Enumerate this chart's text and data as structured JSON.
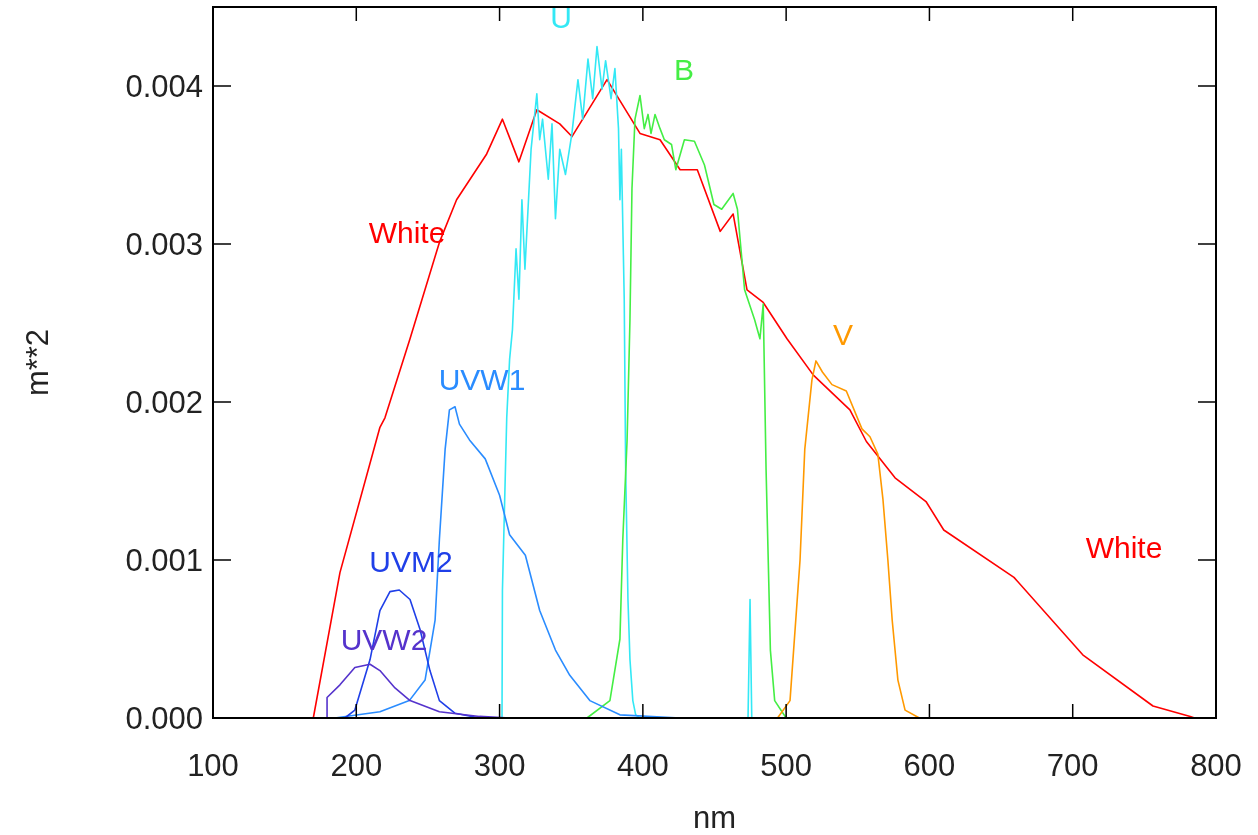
{
  "chart_data": {
    "type": "line",
    "xlabel": "nm",
    "ylabel": "m**2",
    "xlim": [
      100,
      800
    ],
    "ylim": [
      0,
      0.0045
    ],
    "xticks": [
      100,
      200,
      300,
      400,
      500,
      600,
      700,
      800
    ],
    "yticks": [
      {
        "value": 0,
        "label": "0.000"
      },
      {
        "value": 0.001,
        "label": "0.001"
      },
      {
        "value": 0.002,
        "label": "0.002"
      },
      {
        "value": 0.003,
        "label": "0.003"
      },
      {
        "value": 0.004,
        "label": "0.004"
      }
    ],
    "grid": false,
    "legend": false,
    "marker": "none",
    "line_style": "solid",
    "series": [
      {
        "name": "White",
        "color": "#ff0000",
        "x": [
          170,
          188.6,
          216.5,
          220,
          237.5,
          258,
          270,
          291,
          302,
          313.5,
          326,
          342,
          350.5,
          375,
          398,
          412,
          426,
          438,
          454,
          463,
          472.7,
          484,
          500.6,
          519,
          544.5,
          556,
          576,
          597.6,
          610,
          659,
          707,
          756,
          782,
          785
        ],
        "values": [
          0,
          0.00092,
          0.00184,
          0.0019,
          0.0024,
          0.00301,
          0.00328,
          0.00357,
          0.00379,
          0.00352,
          0.00385,
          0.00376,
          0.00368,
          0.00404,
          0.0037,
          0.00366,
          0.00347,
          0.00347,
          0.00308,
          0.00319,
          0.00271,
          0.00263,
          0.0024,
          0.00217,
          0.00195,
          0.00175,
          0.00152,
          0.00137,
          0.00119,
          0.00089,
          0.0004,
          7.6e-05,
          1e-05,
          0
        ]
      },
      {
        "name": "U",
        "color": "#33e8f5",
        "x": [
          301.7,
          302,
          305,
          307,
          309,
          311.5,
          313.5,
          315.6,
          317.7,
          322,
          326,
          328,
          330,
          334,
          336.6,
          339,
          342,
          346,
          350.5,
          354.7,
          358,
          361.7,
          365,
          368,
          371.5,
          374,
          377.8,
          380.5,
          383,
          384,
          385,
          387,
          388,
          389.6,
          391,
          393,
          395,
          398,
          473.4,
          474.8,
          476,
          480
        ],
        "values": [
          0,
          0.00081,
          0.0019,
          0.00227,
          0.00246,
          0.00297,
          0.00265,
          0.00328,
          0.00284,
          0.0036,
          0.00395,
          0.00366,
          0.00379,
          0.00341,
          0.00376,
          0.00316,
          0.0036,
          0.00344,
          0.0037,
          0.00404,
          0.00379,
          0.00417,
          0.00392,
          0.00425,
          0.00398,
          0.00416,
          0.00392,
          0.00411,
          0.00373,
          0.00328,
          0.0036,
          0.00265,
          0.00157,
          0.00075,
          0.00037,
          0.00011,
          2e-05,
          0,
          0,
          0.00075,
          0,
          0
        ]
      },
      {
        "name": "B",
        "color": "#44ee44",
        "x": [
          361,
          377,
          384,
          386,
          389,
          391,
          392.4,
          394.5,
          398,
          401,
          403.6,
          405.7,
          408.5,
          412,
          415,
          420,
          423,
          429,
          436,
          443,
          449.6,
          455,
          463,
          466,
          471,
          478,
          481.7,
          484,
          486,
          489,
          492,
          500
        ],
        "values": [
          0,
          0.00011,
          0.0005,
          0.00113,
          0.00176,
          0.00252,
          0.00335,
          0.00379,
          0.00394,
          0.00373,
          0.00382,
          0.0037,
          0.00382,
          0.00373,
          0.00366,
          0.00363,
          0.00347,
          0.00366,
          0.00365,
          0.0035,
          0.00325,
          0.00322,
          0.00332,
          0.00322,
          0.00271,
          0.00252,
          0.0024,
          0.00262,
          0.00157,
          0.00043,
          0.00011,
          0
        ]
      },
      {
        "name": "V",
        "color": "#ff9900",
        "x": [
          494,
          502.7,
          509.7,
          513,
          518,
          520.8,
          525.3,
          532,
          542,
          552.9,
          558.5,
          564,
          567.6,
          571,
          574,
          578,
          583,
          593
        ],
        "values": [
          0,
          0.00011,
          0.001,
          0.0017,
          0.00214,
          0.00226,
          0.00219,
          0.00211,
          0.00207,
          0.00183,
          0.00178,
          0.00167,
          0.00138,
          0.001,
          0.00062,
          0.00024,
          5e-05,
          0
        ]
      },
      {
        "name": "UVW1",
        "color": "#2a8cff",
        "x": [
          185,
          216.5,
          237,
          248,
          255,
          258,
          262,
          265,
          268.9,
          272,
          279,
          290,
          300,
          307,
          318,
          328,
          339,
          349,
          363,
          384,
          426
        ],
        "values": [
          0,
          4e-05,
          0.00011,
          0.00024,
          0.00062,
          0.00113,
          0.0017,
          0.00195,
          0.00197,
          0.00186,
          0.00176,
          0.00164,
          0.00141,
          0.00116,
          0.00103,
          0.00068,
          0.00043,
          0.00027,
          0.00011,
          2e-05,
          0
        ]
      },
      {
        "name": "UVM2",
        "color": "#1f3fe8",
        "x": [
          192,
          199,
          209.6,
          216.5,
          223.5,
          230,
          237.5,
          244.5,
          251.4,
          258,
          269,
          286
        ],
        "values": [
          0,
          5e-05,
          0.00037,
          0.00068,
          0.0008,
          0.00081,
          0.00075,
          0.00056,
          0.0003,
          0.00011,
          3e-05,
          0
        ]
      },
      {
        "name": "UVW2",
        "color": "#5533cc",
        "x": [
          179.6,
          179.6,
          188.6,
          199,
          209.6,
          216.5,
          227,
          237.5,
          258,
          286,
          307
        ],
        "values": [
          0,
          0.00013,
          0.00021,
          0.00032,
          0.00034,
          0.0003,
          0.00019,
          0.00011,
          4e-05,
          1e-05,
          0
        ]
      }
    ]
  }
}
